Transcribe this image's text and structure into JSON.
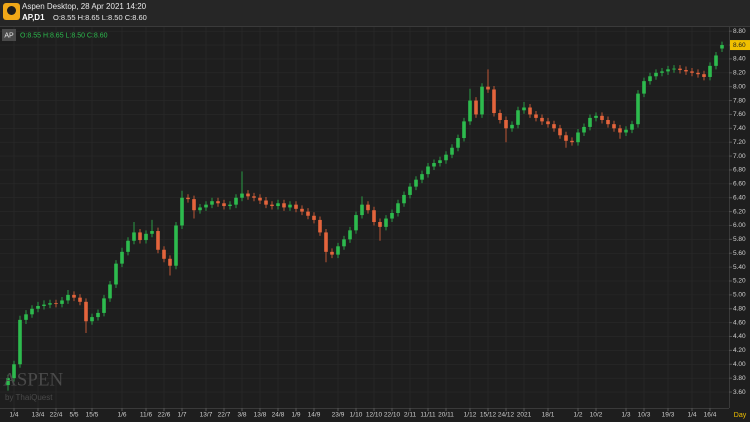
{
  "header": {
    "title": "Aspen Desktop, 28 Apr 2021 14:20",
    "symbol": "AP,D1",
    "ohlc": "O:8.55 H:8.65 L:8.50 C:8.60"
  },
  "chart_data": {
    "type": "candlestick",
    "badge": "AP",
    "legend": "O:8.55 H:8.65 L:8.50 C:8.60",
    "watermark": "ASPEN",
    "watermark_sub": "by ThaiQuest",
    "period": "Day",
    "last_price_label": "8.60",
    "up_color": "#2dbb4e",
    "down_color": "#e4643c",
    "grid": true,
    "ylim": [
      3.37,
      8.86
    ],
    "yticks": [
      {
        "value": 3.6,
        "label": "3.60"
      },
      {
        "value": 3.8,
        "label": "3.80"
      },
      {
        "value": 4.0,
        "label": "4.00"
      },
      {
        "value": 4.2,
        "label": "4.20"
      },
      {
        "value": 4.4,
        "label": "4.40"
      },
      {
        "value": 4.6,
        "label": "4.60"
      },
      {
        "value": 4.8,
        "label": "4.80"
      },
      {
        "value": 5.0,
        "label": "5.00"
      },
      {
        "value": 5.2,
        "label": "5.20"
      },
      {
        "value": 5.4,
        "label": "5.40"
      },
      {
        "value": 5.6,
        "label": "5.60"
      },
      {
        "value": 5.8,
        "label": "5.80"
      },
      {
        "value": 6.0,
        "label": "6.00"
      },
      {
        "value": 6.2,
        "label": "6.20"
      },
      {
        "value": 6.4,
        "label": "6.40"
      },
      {
        "value": 6.6,
        "label": "6.60"
      },
      {
        "value": 6.8,
        "label": "6.80"
      },
      {
        "value": 7.0,
        "label": "7.00"
      },
      {
        "value": 7.2,
        "label": "7.20"
      },
      {
        "value": 7.4,
        "label": "7.40"
      },
      {
        "value": 7.6,
        "label": "7.60"
      },
      {
        "value": 7.8,
        "label": "7.80"
      },
      {
        "value": 8.0,
        "label": "8.00"
      },
      {
        "value": 8.2,
        "label": "8.20"
      },
      {
        "value": 8.4,
        "label": "8.40"
      },
      {
        "value": 8.6,
        "label": "8.60"
      },
      {
        "value": 8.8,
        "label": "8.80"
      }
    ],
    "categories": [
      null,
      "1/4",
      null,
      null,
      null,
      "13/4",
      null,
      null,
      "22/4",
      null,
      null,
      "5/5",
      null,
      null,
      "15/5",
      null,
      null,
      null,
      null,
      "1/6",
      null,
      null,
      null,
      "11/6",
      null,
      null,
      "22/6",
      null,
      null,
      "1/7",
      null,
      null,
      null,
      "13/7",
      null,
      null,
      "22/7",
      null,
      null,
      "3/8",
      null,
      null,
      "13/8",
      null,
      null,
      "24/8",
      null,
      null,
      "1/9",
      null,
      null,
      "14/9",
      null,
      null,
      null,
      "23/9",
      null,
      null,
      "1/10",
      null,
      null,
      "12/10",
      null,
      null,
      "22/10",
      null,
      null,
      "2/11",
      null,
      null,
      "11/11",
      null,
      null,
      "20/11",
      null,
      null,
      null,
      "1/12",
      null,
      null,
      "15/12",
      null,
      null,
      "24/12",
      null,
      null,
      "2021",
      null,
      null,
      null,
      "18/1",
      null,
      null,
      null,
      null,
      "1/2",
      null,
      null,
      "10/2",
      null,
      null,
      null,
      null,
      "1/3",
      null,
      null,
      "10/3",
      null,
      null,
      null,
      "19/3",
      null,
      null,
      null,
      "1/4",
      null,
      null,
      "16/4",
      null,
      null
    ],
    "open": [
      3.7,
      3.8,
      4.0,
      4.64,
      4.72,
      4.8,
      4.84,
      4.86,
      4.88,
      4.87,
      4.92,
      5.0,
      4.96,
      4.9,
      4.62,
      4.68,
      4.74,
      4.95,
      5.15,
      5.45,
      5.62,
      5.78,
      5.9,
      5.79,
      5.88,
      5.92,
      5.65,
      5.52,
      5.42,
      6.0,
      6.4,
      6.38,
      6.22,
      6.26,
      6.3,
      6.35,
      6.32,
      6.28,
      6.3,
      6.4,
      6.46,
      6.42,
      6.4,
      6.36,
      6.3,
      6.28,
      6.32,
      6.26,
      6.3,
      6.24,
      6.2,
      6.14,
      6.08,
      5.9,
      5.62,
      5.58,
      5.7,
      5.8,
      5.93,
      6.15,
      6.3,
      6.22,
      6.05,
      5.98,
      6.1,
      6.18,
      6.32,
      6.44,
      6.56,
      6.66,
      6.74,
      6.85,
      6.9,
      6.94,
      7.02,
      7.12,
      7.26,
      7.5,
      7.8,
      7.6,
      8.0,
      7.96,
      7.62,
      7.52,
      7.4,
      7.45,
      7.66,
      7.7,
      7.6,
      7.55,
      7.5,
      7.46,
      7.4,
      7.3,
      7.22,
      7.2,
      7.34,
      7.42,
      7.55,
      7.58,
      7.52,
      7.46,
      7.4,
      7.34,
      7.38,
      7.46,
      7.9,
      8.08,
      8.15,
      8.2,
      8.22,
      8.25,
      8.26,
      8.24,
      8.22,
      8.2,
      8.18,
      8.14,
      8.3,
      8.55
    ],
    "high": [
      3.85,
      4.05,
      4.7,
      4.78,
      4.85,
      4.9,
      4.92,
      4.93,
      4.93,
      4.97,
      5.07,
      5.05,
      5.01,
      4.95,
      4.73,
      4.79,
      5.0,
      5.2,
      5.5,
      5.68,
      5.83,
      6.05,
      5.95,
      5.93,
      6.08,
      5.97,
      5.7,
      5.57,
      6.05,
      6.5,
      6.45,
      6.43,
      6.31,
      6.35,
      6.4,
      6.4,
      6.37,
      6.35,
      6.45,
      6.78,
      6.51,
      6.47,
      6.45,
      6.41,
      6.35,
      6.37,
      6.37,
      6.35,
      6.35,
      6.29,
      6.25,
      6.19,
      6.13,
      5.95,
      5.67,
      5.75,
      5.85,
      5.98,
      6.2,
      6.42,
      6.35,
      6.27,
      6.1,
      6.15,
      6.23,
      6.37,
      6.49,
      6.61,
      6.71,
      6.79,
      6.9,
      6.95,
      6.99,
      7.07,
      7.17,
      7.31,
      7.55,
      7.97,
      7.85,
      8.05,
      8.25,
      8.01,
      7.67,
      7.57,
      7.5,
      7.71,
      7.78,
      7.75,
      7.65,
      7.6,
      7.55,
      7.51,
      7.45,
      7.35,
      7.27,
      7.39,
      7.47,
      7.6,
      7.63,
      7.63,
      7.57,
      7.51,
      7.45,
      7.43,
      7.51,
      7.95,
      8.13,
      8.2,
      8.25,
      8.27,
      8.3,
      8.31,
      8.31,
      8.29,
      8.27,
      8.25,
      8.23,
      8.35,
      8.5,
      8.65
    ],
    "low": [
      3.62,
      3.75,
      3.95,
      4.58,
      4.67,
      4.75,
      4.79,
      4.81,
      4.82,
      4.82,
      4.87,
      4.91,
      4.85,
      4.45,
      4.57,
      4.63,
      4.69,
      4.9,
      5.1,
      5.4,
      5.57,
      5.73,
      5.74,
      5.74,
      5.83,
      5.6,
      5.47,
      5.28,
      5.37,
      5.95,
      6.33,
      6.1,
      6.17,
      6.21,
      6.25,
      6.27,
      6.23,
      6.23,
      6.25,
      6.35,
      6.37,
      6.35,
      6.31,
      6.25,
      6.23,
      6.23,
      6.21,
      6.21,
      6.19,
      6.15,
      6.09,
      6.03,
      5.85,
      5.47,
      5.53,
      5.53,
      5.65,
      5.75,
      5.88,
      6.1,
      6.17,
      6.0,
      5.78,
      5.93,
      6.05,
      6.13,
      6.27,
      6.39,
      6.51,
      6.61,
      6.69,
      6.8,
      6.85,
      6.89,
      6.97,
      7.07,
      7.21,
      7.45,
      7.55,
      7.55,
      7.91,
      7.57,
      7.47,
      7.2,
      7.35,
      7.4,
      7.61,
      7.55,
      7.5,
      7.45,
      7.41,
      7.35,
      7.25,
      7.12,
      7.15,
      7.15,
      7.29,
      7.37,
      7.5,
      7.47,
      7.41,
      7.35,
      7.25,
      7.29,
      7.33,
      7.41,
      7.85,
      8.03,
      8.1,
      8.15,
      8.17,
      8.2,
      8.19,
      8.17,
      8.15,
      8.13,
      8.09,
      8.09,
      8.25,
      8.5
    ],
    "close": [
      3.8,
      4.0,
      4.64,
      4.72,
      4.8,
      4.84,
      4.86,
      4.88,
      4.87,
      4.92,
      5.0,
      4.96,
      4.9,
      4.62,
      4.68,
      4.74,
      4.95,
      5.15,
      5.45,
      5.62,
      5.78,
      5.9,
      5.79,
      5.88,
      5.92,
      5.65,
      5.52,
      5.42,
      6.0,
      6.4,
      6.38,
      6.22,
      6.26,
      6.3,
      6.35,
      6.32,
      6.28,
      6.3,
      6.4,
      6.46,
      6.42,
      6.4,
      6.36,
      6.3,
      6.28,
      6.32,
      6.26,
      6.3,
      6.24,
      6.2,
      6.14,
      6.08,
      5.9,
      5.62,
      5.58,
      5.7,
      5.8,
      5.93,
      6.15,
      6.3,
      6.22,
      6.05,
      5.98,
      6.1,
      6.18,
      6.32,
      6.44,
      6.56,
      6.66,
      6.74,
      6.85,
      6.9,
      6.94,
      7.02,
      7.12,
      7.26,
      7.5,
      7.8,
      7.6,
      8.0,
      7.96,
      7.62,
      7.52,
      7.4,
      7.45,
      7.66,
      7.7,
      7.6,
      7.55,
      7.5,
      7.46,
      7.4,
      7.3,
      7.22,
      7.2,
      7.34,
      7.42,
      7.55,
      7.58,
      7.52,
      7.46,
      7.4,
      7.34,
      7.38,
      7.46,
      7.9,
      8.08,
      8.15,
      8.2,
      8.22,
      8.25,
      8.26,
      8.24,
      8.22,
      8.2,
      8.18,
      8.14,
      8.3,
      8.45,
      8.6
    ]
  }
}
